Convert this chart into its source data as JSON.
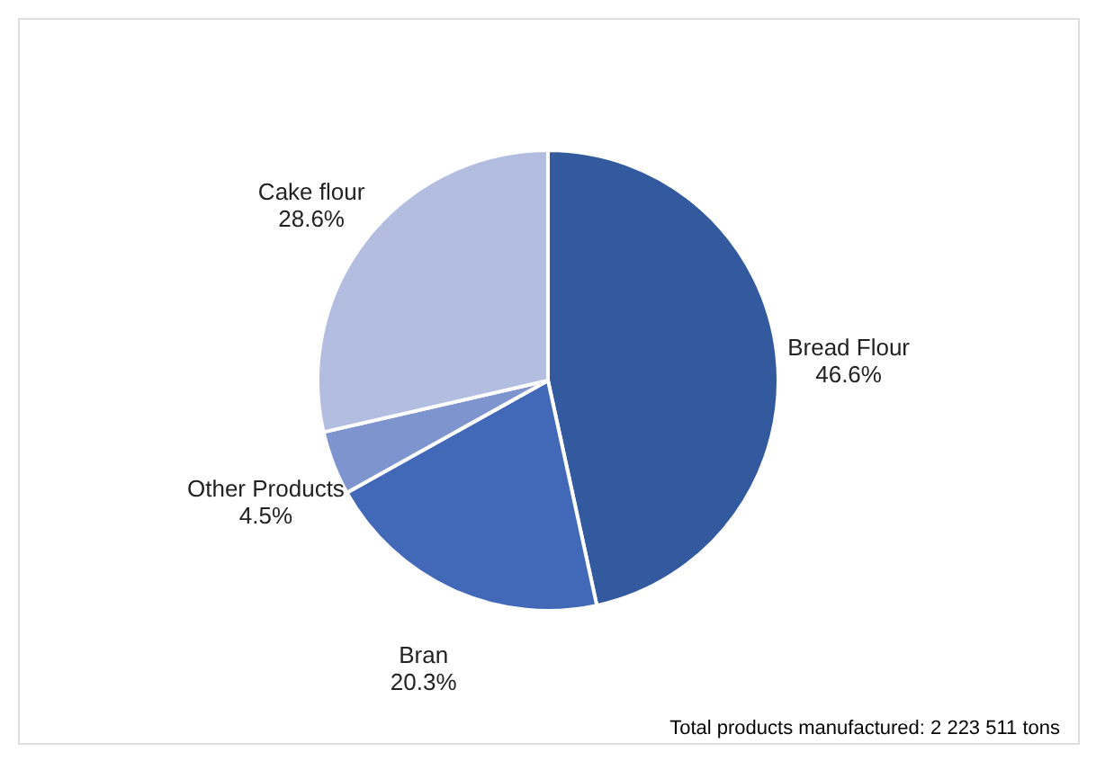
{
  "chart_data": {
    "type": "pie",
    "categories": [
      "Bread Flour",
      "Bran",
      "Other Products",
      "Cake flour"
    ],
    "values": [
      46.6,
      20.3,
      4.5,
      28.6
    ],
    "value_labels": [
      "46.6%",
      "20.3%",
      "4.5%",
      "28.6%"
    ],
    "colors": [
      "#335a9e",
      "#4169b8",
      "#7d94cf",
      "#b3bde0"
    ],
    "legend": false,
    "annotations": [
      "Total products manufactured: 2 223 511 tons"
    ]
  }
}
